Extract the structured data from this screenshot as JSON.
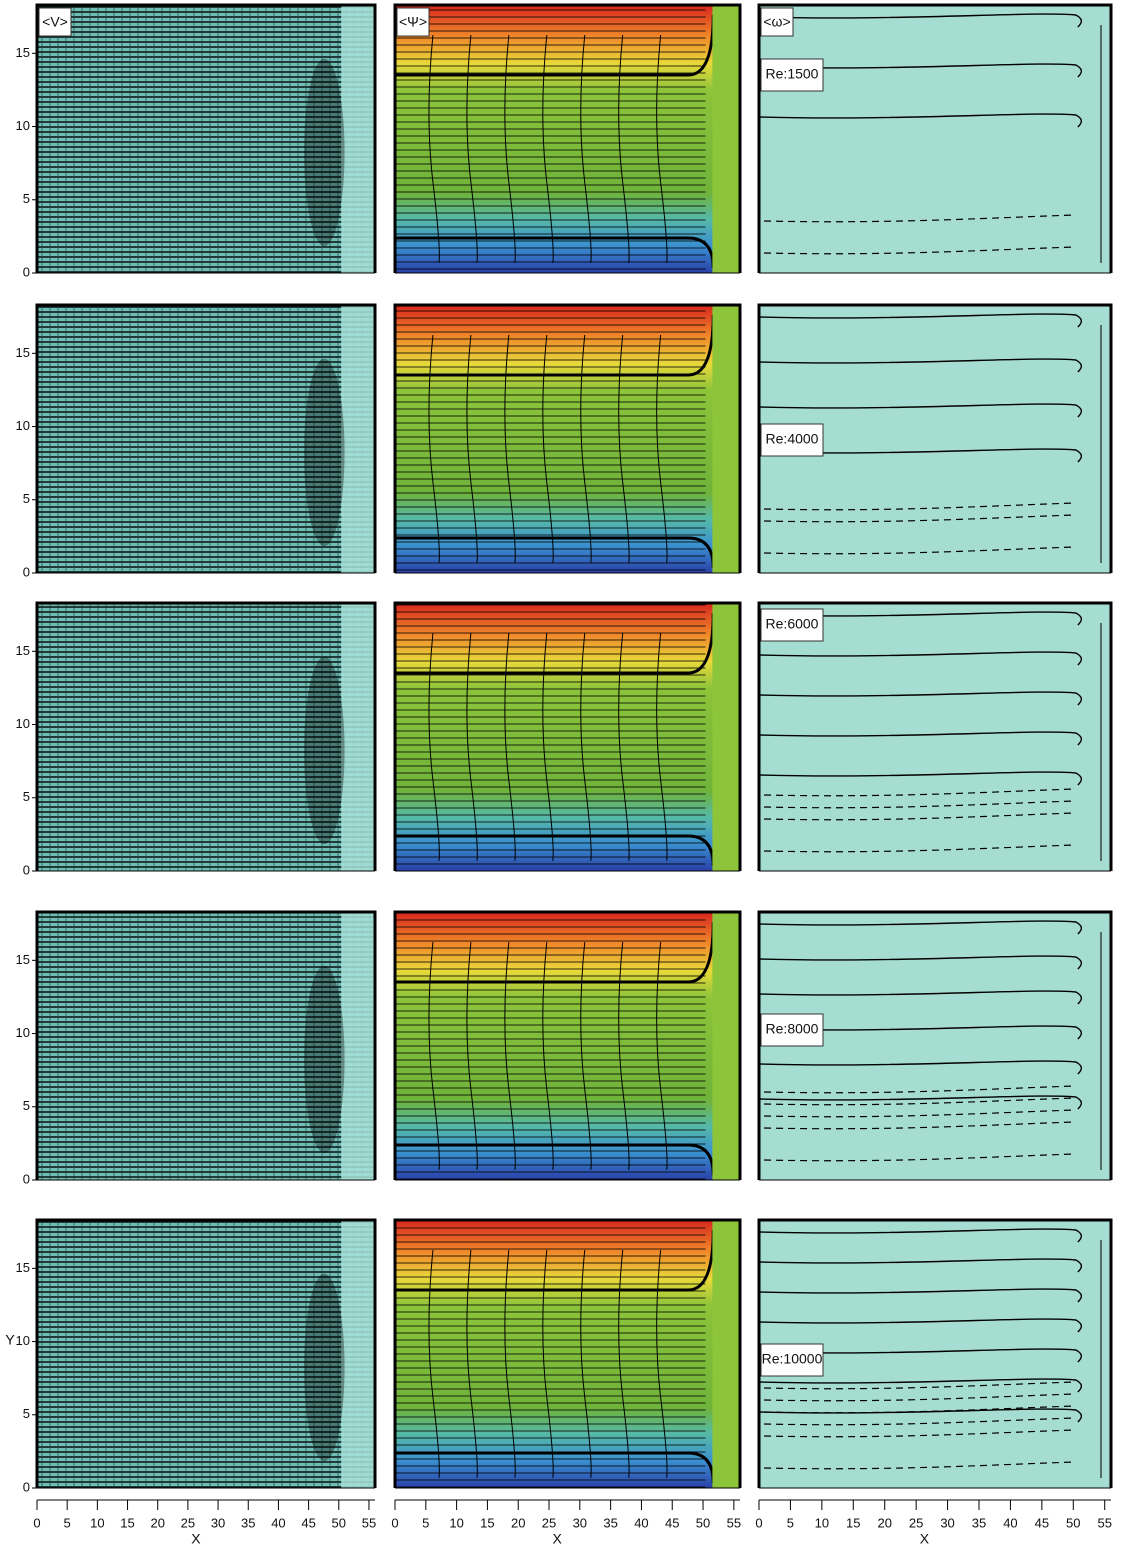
{
  "chart_data": {
    "type": "field-panels",
    "panel_titles": [
      "<V>",
      "<Ψ>",
      "<ω>"
    ],
    "row_labels": [
      "Re:1500",
      "Re:4000",
      "Re:6000",
      "Re:8000",
      "Re:10000"
    ],
    "xlabel": "X",
    "ylabel": "Y",
    "xlim": [
      0,
      56
    ],
    "xticks": [
      0,
      5,
      10,
      15,
      20,
      25,
      30,
      35,
      40,
      45,
      50,
      55
    ],
    "ylim": [
      0,
      18.3
    ],
    "yticks": [
      0,
      5,
      10,
      15
    ]
  }
}
